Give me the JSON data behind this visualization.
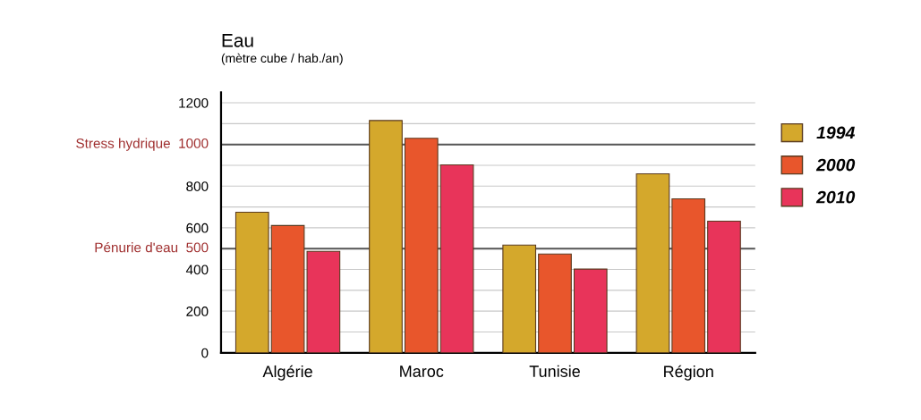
{
  "chart_data": {
    "type": "bar",
    "ylabel": "Eau",
    "subtitle": "(mètre cube / hab./an)",
    "categories": [
      "Algérie",
      "Maroc",
      "Tunisie",
      "Région"
    ],
    "series": [
      {
        "name": "1994",
        "color": "#d4a82c",
        "values": [
          675,
          1115,
          517,
          859
        ]
      },
      {
        "name": "2000",
        "color": "#e8562c",
        "values": [
          611,
          1030,
          474,
          739
        ]
      },
      {
        "name": "2010",
        "color": "#e8345a",
        "values": [
          487,
          902,
          402,
          632
        ]
      }
    ],
    "ylim": [
      0,
      1250
    ],
    "yticks": [
      0,
      {
        "value": 100,
        "label": null
      },
      200,
      {
        "value": 300,
        "label": null
      },
      400,
      600,
      {
        "value": 700,
        "label": null
      },
      800,
      {
        "value": 900,
        "label": null
      },
      {
        "value": 1100,
        "label": null
      },
      1200
    ],
    "ref_lines": [
      {
        "axis": "y",
        "value": 1000,
        "label": "Stress hydrique  1000",
        "color": "#555555"
      },
      {
        "axis": "y",
        "value": 500,
        "label": "Pénurie d'eau  500",
        "color": "#555555"
      }
    ],
    "grid": "y",
    "legend": "right"
  }
}
